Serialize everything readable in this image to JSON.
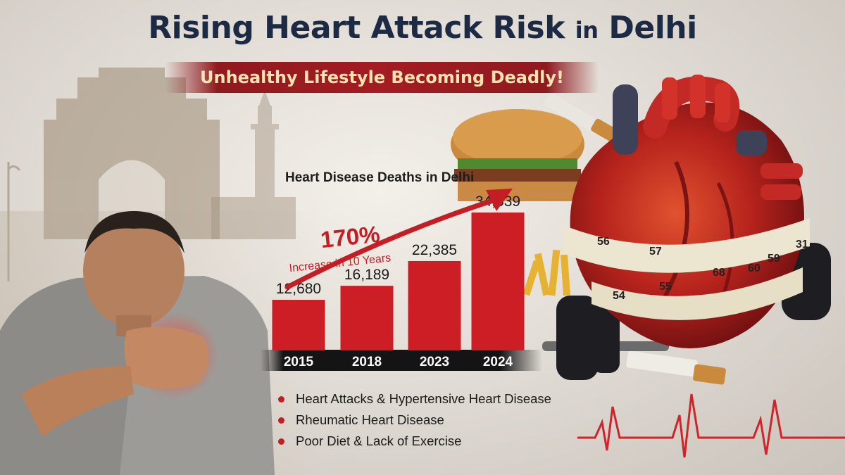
{
  "headline": {
    "main": "Rising Heart Attack Risk",
    "connector": "in",
    "place": "Delhi"
  },
  "subtitle": "Unhealthy Lifestyle Becoming Deadly!",
  "callout": {
    "percent": "170%",
    "text": "Increase in 10 Years"
  },
  "bullets": [
    "Heart Attacks & Hypertensive Heart Disease",
    "Rheumatic Heart Disease",
    "Poor Diet & Lack of Exercise"
  ],
  "tape_numbers": [
    "56",
    "57",
    "59",
    "31",
    "54",
    "55",
    "68",
    "60"
  ],
  "colors": {
    "bar": "#cc1e24",
    "headline": "#1d2a44",
    "banner": "#a31d22",
    "banner_text": "#f8e3b0",
    "ecg": "#d0242a"
  },
  "chart_data": {
    "type": "bar",
    "title": "Heart Disease Deaths in Delhi",
    "categories": [
      "2015",
      "2018",
      "2023",
      "2024"
    ],
    "values": [
      12680,
      16189,
      22385,
      34539
    ],
    "value_labels": [
      "12,680",
      "16,189",
      "22,385",
      "34,539"
    ],
    "ylim": [
      0,
      40000
    ],
    "grid": false
  }
}
